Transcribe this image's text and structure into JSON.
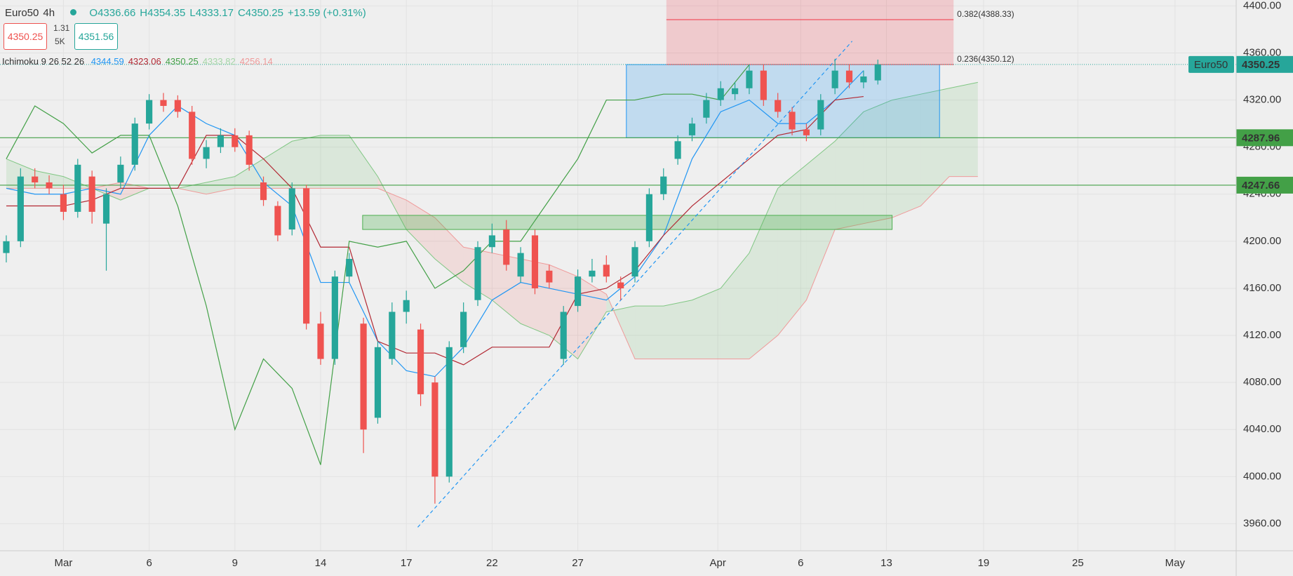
{
  "header": {
    "symbol": "Euro50",
    "interval": "4h",
    "ohlc": [
      "O4336.66",
      "H4354.35",
      "L4333.17",
      "C4350.25",
      "+13.59 (+0.31%)"
    ],
    "sell": 4350.25,
    "spread": 1.31,
    "size": "5K",
    "buy": 4351.56
  },
  "indicator": {
    "name": "Ichimoku 9 26 52 26",
    "values": [
      4344.59,
      4323.06,
      4350.25,
      4333.82,
      4256.14
    ],
    "colors": [
      "#2196f3",
      "#b22833",
      "#43a047",
      "#a5d6a7",
      "#ef9a9a"
    ]
  },
  "chart_data": {
    "type": "candlestick",
    "x": [
      -2,
      -1.5,
      -1,
      -0.5,
      0,
      0.5,
      1,
      1.5,
      2,
      2.5,
      3,
      3.5,
      4,
      4.5,
      5,
      5.5,
      6,
      6.5,
      7,
      7.5,
      8,
      8.5,
      9,
      9.5,
      10,
      10.5,
      11,
      11.5,
      12,
      12.5,
      13,
      13.5,
      14,
      14.5,
      15,
      15.5,
      16,
      16.5,
      17,
      17.5,
      18,
      18.5,
      19,
      19.5,
      20,
      20.5,
      21,
      21.5,
      22,
      22.5,
      23,
      23.5,
      24,
      24.5,
      25,
      25.5,
      26,
      26.5,
      27,
      27.5,
      28,
      28.5
    ],
    "open": [
      4190,
      4200,
      4255,
      4250,
      4240,
      4225,
      4255,
      4215,
      4250,
      4265,
      4300,
      4320,
      4320,
      4310,
      4270,
      4280,
      4290,
      4290,
      4250,
      4230,
      4210,
      4245,
      4130,
      4100,
      4170,
      4130,
      4050,
      4100,
      4140,
      4125,
      4080,
      4000,
      4110,
      4150,
      4195,
      4210,
      4170,
      4205,
      4175,
      4100,
      4145,
      4170,
      4180,
      4165,
      4170,
      4200,
      4240,
      4270,
      4290,
      4305,
      4320,
      4325,
      4330,
      4345,
      4320,
      4310,
      4295,
      4295,
      4330,
      4345,
      4335,
      4336.66
    ],
    "high": [
      4205,
      4262,
      4262,
      4256,
      4248,
      4270,
      4260,
      4245,
      4272,
      4305,
      4325,
      4326,
      4324,
      4315,
      4286,
      4296,
      4296,
      4294,
      4255,
      4234,
      4250,
      4248,
      4140,
      4175,
      4190,
      4135,
      4115,
      4148,
      4158,
      4130,
      4085,
      4115,
      4148,
      4200,
      4215,
      4218,
      4195,
      4210,
      4180,
      4145,
      4176,
      4185,
      4188,
      4170,
      4200,
      4245,
      4262,
      4290,
      4305,
      4326,
      4336,
      4335,
      4350,
      4350,
      4326,
      4314,
      4300,
      4325,
      4355,
      4350,
      4345,
      4354.35
    ],
    "low": [
      4182,
      4195,
      4245,
      4240,
      4218,
      4220,
      4215,
      4175,
      4245,
      4260,
      4295,
      4310,
      4305,
      4265,
      4262,
      4275,
      4276,
      4260,
      4230,
      4200,
      4205,
      4125,
      4095,
      4095,
      4165,
      4020,
      4045,
      4095,
      4130,
      4060,
      3977,
      3995,
      4105,
      4145,
      4190,
      4175,
      4165,
      4155,
      4160,
      4095,
      4140,
      4165,
      4165,
      4150,
      4165,
      4195,
      4235,
      4265,
      4285,
      4300,
      4315,
      4320,
      4325,
      4315,
      4305,
      4290,
      4285,
      4290,
      4325,
      4330,
      4330,
      4333.17
    ],
    "close": [
      4200,
      4255,
      4250,
      4245,
      4225,
      4265,
      4225,
      4240,
      4265,
      4300,
      4320,
      4315,
      4310,
      4270,
      4280,
      4290,
      4280,
      4265,
      4235,
      4205,
      4245,
      4130,
      4100,
      4170,
      4185,
      4040,
      4110,
      4140,
      4150,
      4070,
      4000,
      4110,
      4140,
      4195,
      4205,
      4180,
      4190,
      4160,
      4165,
      4140,
      4170,
      4175,
      4170,
      4160,
      4195,
      4240,
      4255,
      4285,
      4300,
      4320,
      4330,
      4330,
      4345,
      4320,
      4310,
      4295,
      4290,
      4320,
      4345,
      4335,
      4340,
      4350.25
    ],
    "up_color": "#26a69a",
    "down_color": "#ef5350",
    "clouds": {
      "span_a": {
        "color": "#81c784",
        "x": [
          -2,
          -1,
          0,
          1,
          2,
          3,
          4,
          5,
          6,
          7,
          8,
          9,
          10,
          11,
          12,
          13,
          14,
          15,
          16,
          17,
          18,
          19,
          20,
          21,
          22,
          23,
          24,
          25,
          26,
          27,
          28,
          29,
          30,
          31,
          32
        ],
        "values": [
          4270,
          4260,
          4255,
          4245,
          4235,
          4245,
          4245,
          4250,
          4255,
          4270,
          4285,
          4290,
          4290,
          4255,
          4210,
          4185,
          4165,
          4150,
          4130,
          4120,
          4100,
          4140,
          4145,
          4145,
          4150,
          4160,
          4190,
          4245,
          4265,
          4285,
          4310,
          4320,
          4325,
          4330,
          4335
        ]
      },
      "span_b": {
        "color": "#ef9a9a",
        "x": [
          -2,
          -1,
          0,
          1,
          2,
          3,
          4,
          5,
          6,
          7,
          8,
          9,
          10,
          11,
          12,
          13,
          14,
          15,
          16,
          17,
          18,
          19,
          20,
          21,
          22,
          23,
          24,
          25,
          26,
          27,
          28,
          29,
          30,
          31,
          32
        ],
        "values": [
          4245,
          4245,
          4245,
          4245,
          4250,
          4245,
          4245,
          4240,
          4245,
          4245,
          4245,
          4245,
          4245,
          4245,
          4235,
          4220,
          4195,
          4190,
          4185,
          4180,
          4170,
          4155,
          4100,
          4100,
          4100,
          4100,
          4100,
          4120,
          4150,
          4210,
          4215,
          4220,
          4230,
          4255,
          4255
        ]
      },
      "up_fill": "rgba(76,175,80,0.13)",
      "down_fill": "rgba(239,83,80,0.13)"
    },
    "lines": [
      {
        "color": "#2196f3",
        "x": [
          -2,
          -1,
          0,
          1,
          2,
          3,
          4,
          5,
          6,
          7,
          8,
          9,
          10,
          11,
          12,
          13,
          14,
          15,
          16,
          17,
          18,
          19,
          20,
          21,
          22,
          23,
          24,
          25,
          26,
          27,
          28
        ],
        "values": [
          4245,
          4240,
          4240,
          4245,
          4240,
          4290,
          4315,
          4300,
          4290,
          4250,
          4230,
          4165,
          4165,
          4115,
          4090,
          4085,
          4110,
          4150,
          4165,
          4160,
          4155,
          4150,
          4170,
          4205,
          4270,
          4310,
          4320,
          4300,
          4300,
          4320,
          4345
        ]
      },
      {
        "color": "#b22833",
        "x": [
          -2,
          -1,
          0,
          1,
          2,
          3,
          4,
          5,
          6,
          7,
          8,
          9,
          10,
          11,
          12,
          13,
          14,
          15,
          16,
          17,
          18,
          19,
          20,
          21,
          22,
          23,
          24,
          25,
          26,
          27,
          28
        ],
        "values": [
          4230,
          4230,
          4230,
          4235,
          4245,
          4245,
          4245,
          4290,
          4290,
          4270,
          4245,
          4195,
          4195,
          4115,
          4105,
          4105,
          4095,
          4110,
          4110,
          4110,
          4155,
          4160,
          4175,
          4205,
          4230,
          4250,
          4270,
          4290,
          4295,
          4320,
          4323
        ]
      },
      {
        "color": "#43a047",
        "x": [
          -2,
          -1,
          0,
          1,
          2,
          3,
          4,
          5,
          6,
          7,
          8,
          9,
          10,
          11,
          12,
          13,
          14,
          15,
          16,
          17,
          18,
          19,
          20,
          21,
          22,
          23,
          24
        ],
        "values": [
          4270,
          4315,
          4300,
          4275,
          4290,
          4290,
          4230,
          4145,
          4040,
          4100,
          4075,
          4010,
          4200,
          4195,
          4200,
          4160,
          4175,
          4200,
          4200,
          4235,
          4270,
          4320,
          4320,
          4325,
          4325,
          4320,
          4350
        ]
      }
    ],
    "hlines": [
      {
        "value": 4287.96,
        "color": "#43a047"
      },
      {
        "value": 4247.66,
        "color": "#43a047"
      }
    ],
    "boxes": [
      {
        "x": [
          10.47,
          29.0
        ],
        "y": [
          4210,
          4222
        ],
        "fill": "rgba(76,175,80,0.3)",
        "stroke": "#4caf50"
      },
      {
        "x": [
          19.7,
          30.66
        ],
        "y": [
          4287.96,
          4350.12
        ],
        "fill": "rgba(33,150,243,0.22)",
        "stroke": "#2196f3"
      },
      {
        "x": [
          21.1,
          31.15
        ],
        "y": [
          4350.12,
          4405
        ],
        "fill": "rgba(242,54,69,0.2)",
        "stroke": "none"
      }
    ],
    "fib": [
      {
        "value": 4388.33,
        "label": "0.382(4388.33)",
        "color": "#f23645"
      },
      {
        "value": 4350.12,
        "label": "0.236(4350.12)",
        "color": "#f23645"
      }
    ],
    "trendline": {
      "x": [
        12.4,
        27.6
      ],
      "y": [
        3957,
        4370
      ],
      "color": "#2196f3"
    },
    "last_price": {
      "label": "Euro50",
      "value": 4350.25,
      "color": "#26a69a"
    },
    "xlim": [
      -2.22,
      41.04
    ],
    "ylim": [
      3937,
      4405
    ],
    "yticks": [
      {
        "value": 3960,
        "label": "3960.00"
      },
      {
        "value": 4000,
        "label": "4000.00"
      },
      {
        "value": 4040,
        "label": "4040.00"
      },
      {
        "value": 4080,
        "label": "4080.00"
      },
      {
        "value": 4120,
        "label": "4120.00"
      },
      {
        "value": 4160,
        "label": "4160.00"
      },
      {
        "value": 4200,
        "label": "4200.00"
      },
      {
        "value": 4240,
        "label": "4240.00"
      },
      {
        "value": 4280,
        "label": "4280.00"
      },
      {
        "value": 4320,
        "label": "4320.00"
      },
      {
        "value": 4360,
        "label": "4360.00"
      },
      {
        "value": 4400,
        "label": "4400.00"
      }
    ],
    "xticks": [
      {
        "value": 0,
        "label": "Mar"
      },
      {
        "value": 3,
        "label": "6"
      },
      {
        "value": 6,
        "label": "9"
      },
      {
        "value": 9,
        "label": "14"
      },
      {
        "value": 12,
        "label": "17"
      },
      {
        "value": 15,
        "label": "22"
      },
      {
        "value": 18,
        "label": "27"
      },
      {
        "value": 22.9,
        "label": "Apr"
      },
      {
        "value": 25.8,
        "label": "6"
      },
      {
        "value": 28.8,
        "label": "13"
      },
      {
        "value": 32.2,
        "label": "19"
      },
      {
        "value": 35.5,
        "label": "25"
      },
      {
        "value": 38.9,
        "label": "May"
      }
    ],
    "grid": true
  }
}
